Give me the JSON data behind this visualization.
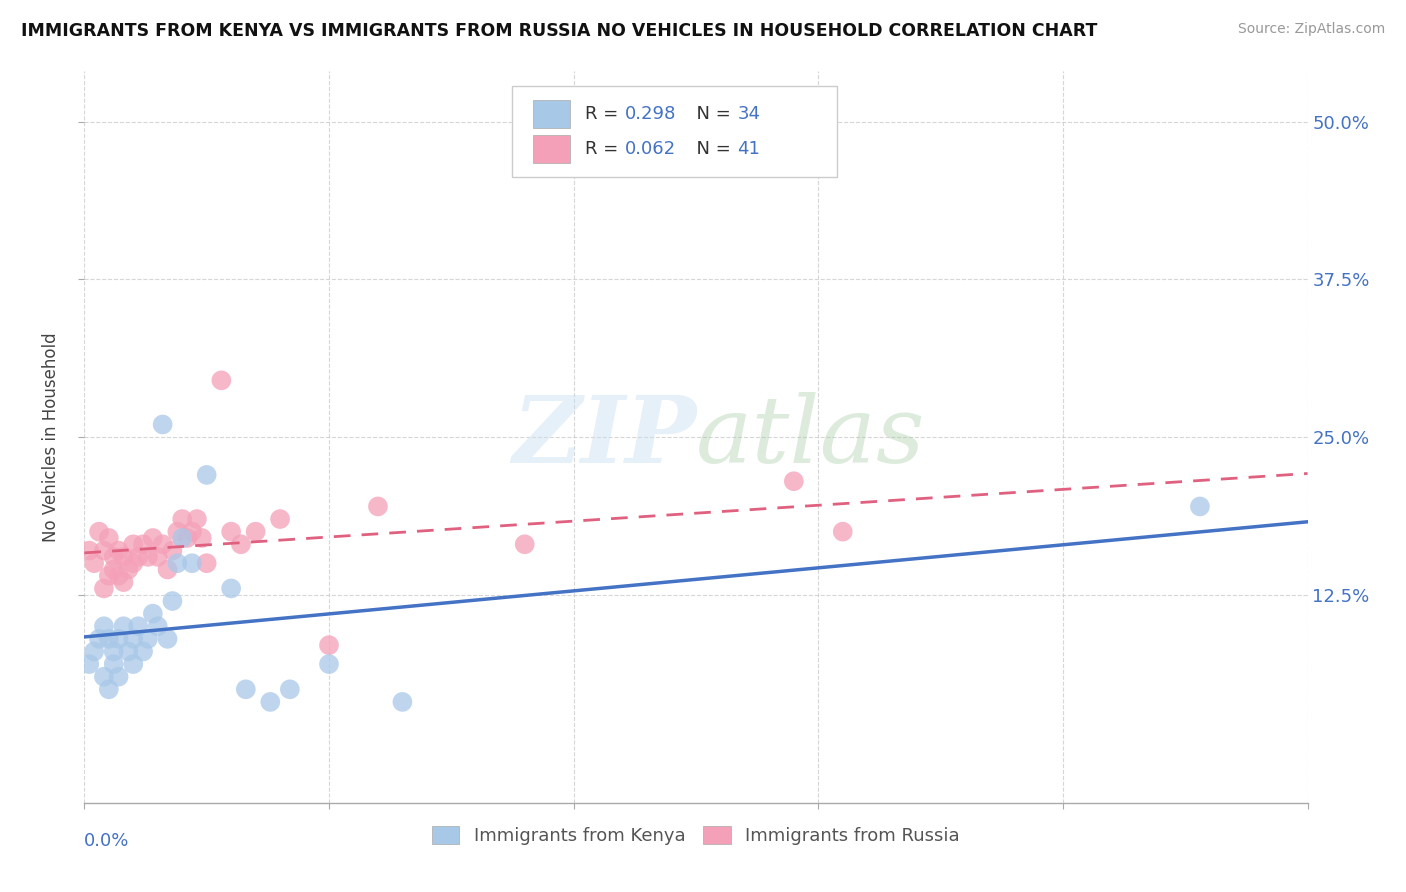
{
  "title": "IMMIGRANTS FROM KENYA VS IMMIGRANTS FROM RUSSIA NO VEHICLES IN HOUSEHOLD CORRELATION CHART",
  "source": "Source: ZipAtlas.com",
  "ylabel": "No Vehicles in Household",
  "right_yticks": [
    "50.0%",
    "37.5%",
    "25.0%",
    "12.5%"
  ],
  "right_ytick_vals": [
    0.5,
    0.375,
    0.25,
    0.125
  ],
  "xlim": [
    0.0,
    0.25
  ],
  "ylim": [
    -0.04,
    0.54
  ],
  "kenya_R": 0.298,
  "kenya_N": 34,
  "russia_R": 0.062,
  "russia_N": 41,
  "kenya_color": "#a8c8e8",
  "russia_color": "#f4a0b8",
  "kenya_line_color": "#4472c4",
  "russia_line_color": "#e06080",
  "legend_label_kenya": "Immigrants from Kenya",
  "legend_label_russia": "Immigrants from Russia",
  "background_color": "#ffffff",
  "kenya_x": [
    0.001,
    0.002,
    0.003,
    0.004,
    0.004,
    0.005,
    0.005,
    0.006,
    0.006,
    0.007,
    0.007,
    0.008,
    0.009,
    0.01,
    0.01,
    0.011,
    0.012,
    0.013,
    0.014,
    0.015,
    0.016,
    0.017,
    0.018,
    0.019,
    0.02,
    0.022,
    0.025,
    0.03,
    0.033,
    0.038,
    0.042,
    0.05,
    0.065,
    0.228
  ],
  "kenya_y": [
    0.07,
    0.08,
    0.09,
    0.1,
    0.06,
    0.09,
    0.05,
    0.08,
    0.07,
    0.09,
    0.06,
    0.1,
    0.08,
    0.09,
    0.07,
    0.1,
    0.08,
    0.09,
    0.11,
    0.1,
    0.26,
    0.09,
    0.12,
    0.15,
    0.17,
    0.15,
    0.22,
    0.13,
    0.05,
    0.04,
    0.05,
    0.07,
    0.04,
    0.195
  ],
  "russia_x": [
    0.001,
    0.002,
    0.003,
    0.004,
    0.004,
    0.005,
    0.005,
    0.006,
    0.006,
    0.007,
    0.007,
    0.008,
    0.008,
    0.009,
    0.01,
    0.01,
    0.011,
    0.012,
    0.013,
    0.014,
    0.015,
    0.016,
    0.017,
    0.018,
    0.019,
    0.02,
    0.021,
    0.022,
    0.023,
    0.024,
    0.025,
    0.028,
    0.03,
    0.032,
    0.035,
    0.04,
    0.05,
    0.06,
    0.09,
    0.145,
    0.155
  ],
  "russia_y": [
    0.16,
    0.15,
    0.175,
    0.16,
    0.13,
    0.17,
    0.14,
    0.155,
    0.145,
    0.16,
    0.14,
    0.155,
    0.135,
    0.145,
    0.165,
    0.15,
    0.155,
    0.165,
    0.155,
    0.17,
    0.155,
    0.165,
    0.145,
    0.16,
    0.175,
    0.185,
    0.17,
    0.175,
    0.185,
    0.17,
    0.15,
    0.295,
    0.175,
    0.165,
    0.175,
    0.185,
    0.085,
    0.195,
    0.165,
    0.215,
    0.175
  ]
}
